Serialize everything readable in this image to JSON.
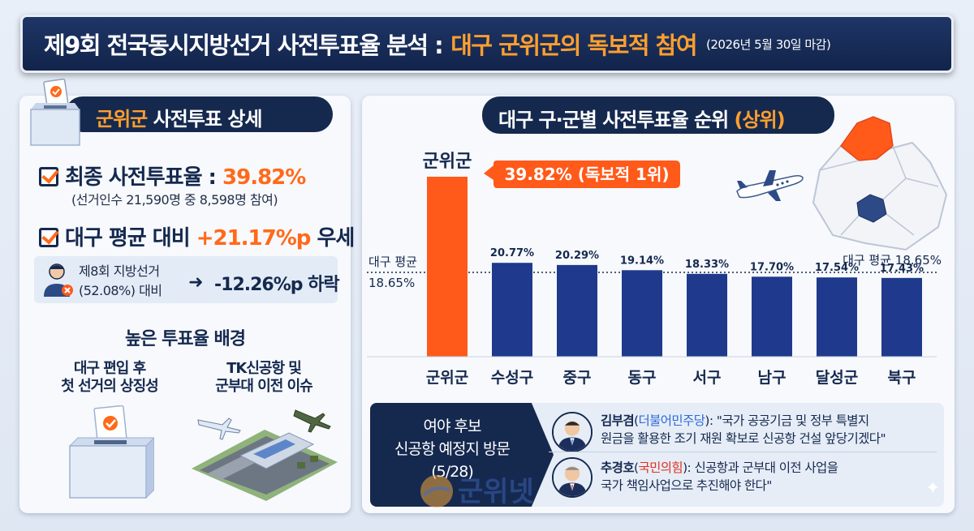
{
  "title": {
    "main": "제9회 전국동시지방선거 사전투표율 분석 :",
    "highlight": "대구 군위군의 독보적 참여",
    "date_note": "(2026년 5월 30일 마감)"
  },
  "left": {
    "pill_highlight": "군위군",
    "pill_rest": "사전투표 상세",
    "final_rate_label": "최종 사전투표율 :",
    "final_rate_value": "39.82%",
    "voters_note": "(선거인수 21,590명 중 8,598명 참여)",
    "avg_compare_label": "대구 평균 대비",
    "avg_compare_value": "+21.17%p",
    "avg_compare_suffix": "우세",
    "prev_election_line1": "제8회 지방선거",
    "prev_election_line2": "(52.08%) 대비",
    "prev_arrow": "➜",
    "prev_change": "-12.26%p 하락",
    "background_title": "높은 투표율 배경",
    "background_item1": "대구 편입 후\n첫 선거의 상징성",
    "background_item2": "TK신공항 및\n군부대 이전 이슈"
  },
  "right": {
    "pill_main": "대구 구·군별 사전투표율 순위",
    "pill_highlight": "(상위)"
  },
  "chart_data": {
    "type": "bar",
    "categories": [
      "군위군",
      "수성구",
      "중구",
      "동구",
      "서구",
      "남구",
      "달성군",
      "북구"
    ],
    "values": [
      39.82,
      20.77,
      20.29,
      19.14,
      18.33,
      17.7,
      17.54,
      17.43
    ],
    "value_labels": [
      "",
      "20.77%",
      "20.29%",
      "19.14%",
      "18.33%",
      "17.70%",
      "17.54%",
      "17.43%"
    ],
    "highlight_index": 0,
    "highlight_label": "군위군",
    "highlight_callout": "39.82% (독보적 1위)",
    "average": 18.65,
    "average_label_left": "대구 평균\n18.65%",
    "average_label_right": "대구 평균 18.65%",
    "ylim": [
      0,
      42
    ],
    "colors": {
      "highlight": "#ff5a1a",
      "default": "#1f3a8c",
      "avg_line": "#15294f"
    }
  },
  "visit": {
    "label": "여야 후보\n신공항 예정지 방문\n(5/28)",
    "q1_name": "김부겸",
    "q1_party": "더불어민주당",
    "q1_line1": ": \"국가 공공기금 및 정부 특별지",
    "q1_line2": "원금을 활용한 조기 재원 확보로 신공항 건설 앞당기겠다\"",
    "q2_name": "추경호",
    "q2_party": "국민의힘",
    "q2_line1": ": 신공항과 군부대 이전 사업을",
    "q2_line2": "국가 책임사업으로 추진해야 한다\""
  },
  "watermark": "군위넷"
}
